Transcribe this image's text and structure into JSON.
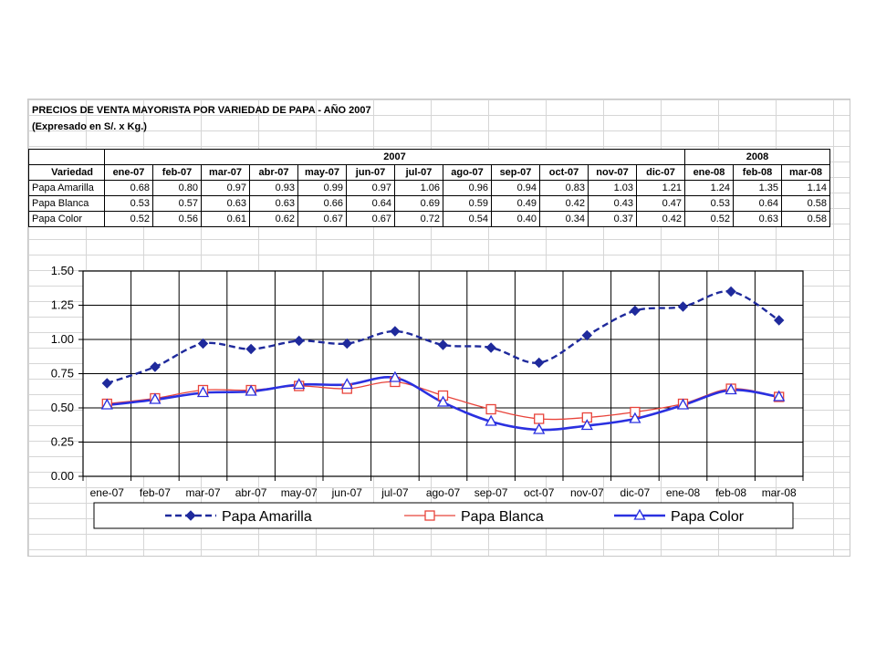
{
  "sheet": {
    "title": "PRECIOS DE VENTA MAYORISTA POR VARIEDAD DE PAPA - AÑO 2007",
    "subtitle": "(Expresado en S/. x Kg.)",
    "year_2007": "2007",
    "year_2008": "2008",
    "variedad_header": "Variedad",
    "months": [
      "ene-07",
      "feb-07",
      "mar-07",
      "abr-07",
      "may-07",
      "jun-07",
      "jul-07",
      "ago-07",
      "sep-07",
      "oct-07",
      "nov-07",
      "dic-07",
      "ene-08",
      "feb-08",
      "mar-08"
    ],
    "rows": [
      {
        "label": "Papa Amarilla",
        "values": [
          "0.68",
          "0.80",
          "0.97",
          "0.93",
          "0.99",
          "0.97",
          "1.06",
          "0.96",
          "0.94",
          "0.83",
          "1.03",
          "1.21",
          "1.24",
          "1.35",
          "1.14"
        ]
      },
      {
        "label": "Papa Blanca",
        "values": [
          "0.53",
          "0.57",
          "0.63",
          "0.63",
          "0.66",
          "0.64",
          "0.69",
          "0.59",
          "0.49",
          "0.42",
          "0.43",
          "0.47",
          "0.53",
          "0.64",
          "0.58"
        ]
      },
      {
        "label": "Papa Color",
        "values": [
          "0.52",
          "0.56",
          "0.61",
          "0.62",
          "0.67",
          "0.67",
          "0.72",
          "0.54",
          "0.40",
          "0.34",
          "0.37",
          "0.42",
          "0.52",
          "0.63",
          "0.58"
        ]
      }
    ]
  },
  "chart_data": {
    "type": "line",
    "categories": [
      "ene-07",
      "feb-07",
      "mar-07",
      "abr-07",
      "may-07",
      "jun-07",
      "jul-07",
      "ago-07",
      "sep-07",
      "oct-07",
      "nov-07",
      "dic-07",
      "ene-08",
      "feb-08",
      "mar-08"
    ],
    "series": [
      {
        "name": "Papa Amarilla",
        "color": "#1f2a9c",
        "values": [
          0.68,
          0.8,
          0.97,
          0.93,
          0.99,
          0.97,
          1.06,
          0.96,
          0.94,
          0.83,
          1.03,
          1.21,
          1.24,
          1.35,
          1.14
        ],
        "style": "dashed",
        "marker": "diamond"
      },
      {
        "name": "Papa Blanca",
        "color": "#e8433a",
        "values": [
          0.53,
          0.57,
          0.63,
          0.63,
          0.66,
          0.64,
          0.69,
          0.59,
          0.49,
          0.42,
          0.43,
          0.47,
          0.53,
          0.64,
          0.58
        ],
        "style": "solid",
        "marker": "square"
      },
      {
        "name": "Papa Color",
        "color": "#2a30e0",
        "values": [
          0.52,
          0.56,
          0.61,
          0.62,
          0.67,
          0.67,
          0.72,
          0.54,
          0.4,
          0.34,
          0.37,
          0.42,
          0.52,
          0.63,
          0.58
        ],
        "style": "solid",
        "marker": "triangle"
      }
    ],
    "yticks": [
      "0.00",
      "0.25",
      "0.50",
      "0.75",
      "1.00",
      "1.25",
      "1.50"
    ],
    "ylim": [
      0,
      1.5
    ],
    "grid": true,
    "legend": "bottom"
  }
}
